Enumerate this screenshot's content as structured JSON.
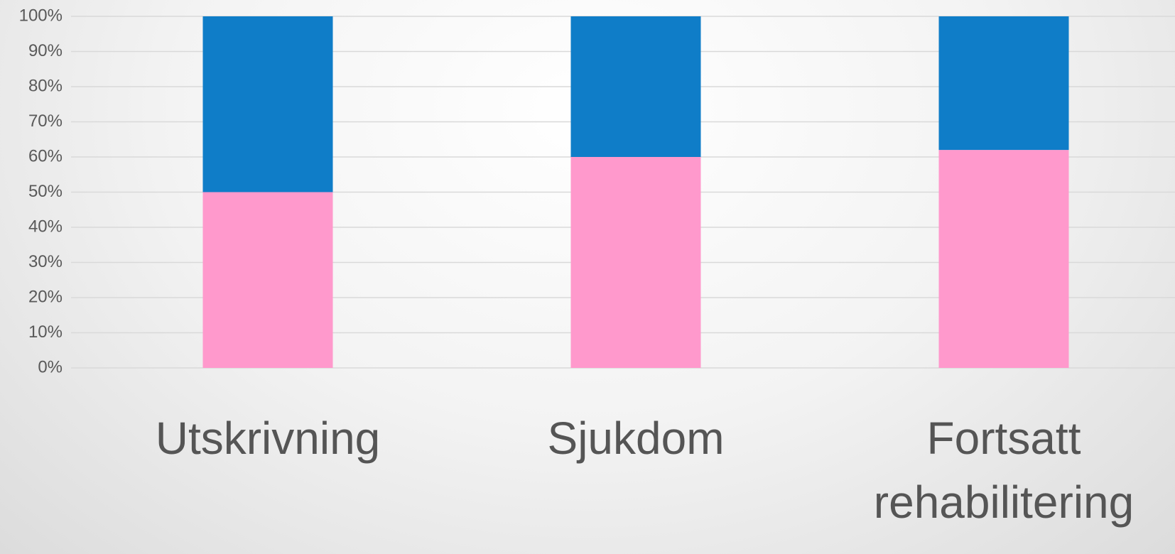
{
  "chart_data": {
    "type": "stacked-bar",
    "categories": [
      "Utskrivning",
      "Sjukdom",
      "Fortsatt rehabilitering"
    ],
    "series": [
      {
        "color": "#ff99cc",
        "values": [
          50,
          60,
          62
        ]
      },
      {
        "color": "#0f7dc8",
        "values": [
          50,
          40,
          38
        ]
      }
    ],
    "ylim": [
      0,
      100
    ],
    "yticks": [
      {
        "value": 0,
        "label": "0%"
      },
      {
        "value": 10,
        "label": "10%"
      },
      {
        "value": 20,
        "label": "20%"
      },
      {
        "value": 30,
        "label": "30%"
      },
      {
        "value": 40,
        "label": "40%"
      },
      {
        "value": 50,
        "label": "50%"
      },
      {
        "value": 60,
        "label": "60%"
      },
      {
        "value": 70,
        "label": "70%"
      },
      {
        "value": 80,
        "label": "80%"
      },
      {
        "value": 90,
        "label": "90%"
      },
      {
        "value": 100,
        "label": "100%"
      }
    ],
    "grid": true
  }
}
